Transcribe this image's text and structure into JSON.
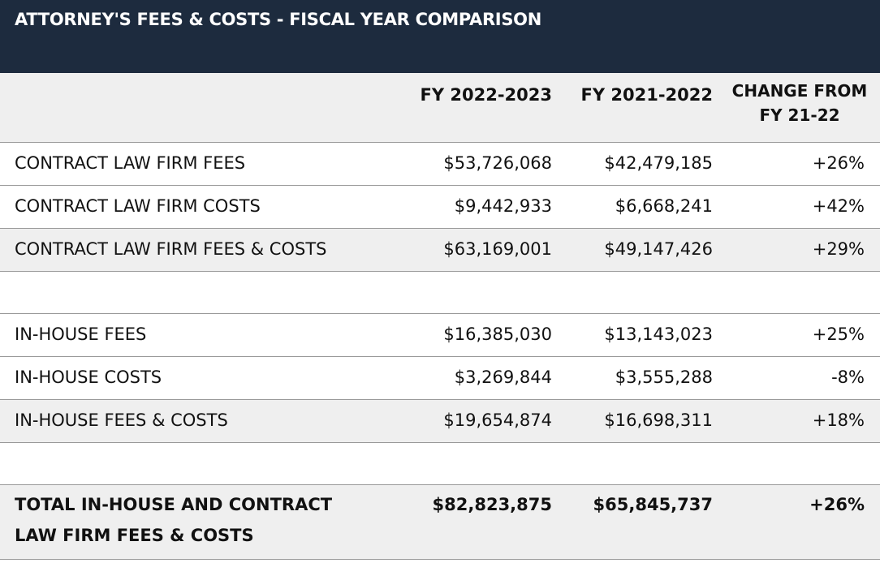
{
  "header": {
    "title": "ATTORNEY'S FEES & COSTS - FISCAL YEAR COMPARISON"
  },
  "table": {
    "columns": [
      "FY 2022-2023",
      "FY 2021-2022",
      "CHANGE FROM FY 21-22"
    ],
    "groups": [
      [
        [
          "CONTRACT LAW FIRM FEES",
          "$53,726,068",
          "$42,479,185",
          "+26%"
        ],
        [
          "CONTRACT LAW FIRM COSTS",
          "$9,442,933",
          "$6,668,241",
          "+42%"
        ],
        [
          "CONTRACT LAW FIRM FEES & COSTS",
          "$63,169,001",
          "$49,147,426",
          "+29%"
        ]
      ],
      [
        [
          "IN-HOUSE FEES",
          "$16,385,030",
          "$13,143,023",
          "+25%"
        ],
        [
          "IN-HOUSE COSTS",
          "$3,269,844",
          "$3,555,288",
          "-8%"
        ],
        [
          "IN-HOUSE FEES & COSTS",
          "$19,654,874",
          "$16,698,311",
          "+18%"
        ]
      ]
    ],
    "total": [
      "TOTAL IN-HOUSE AND CONTRACT LAW FIRM FEES & COSTS",
      "$82,823,875",
      "$65,845,737",
      "+26%"
    ]
  }
}
